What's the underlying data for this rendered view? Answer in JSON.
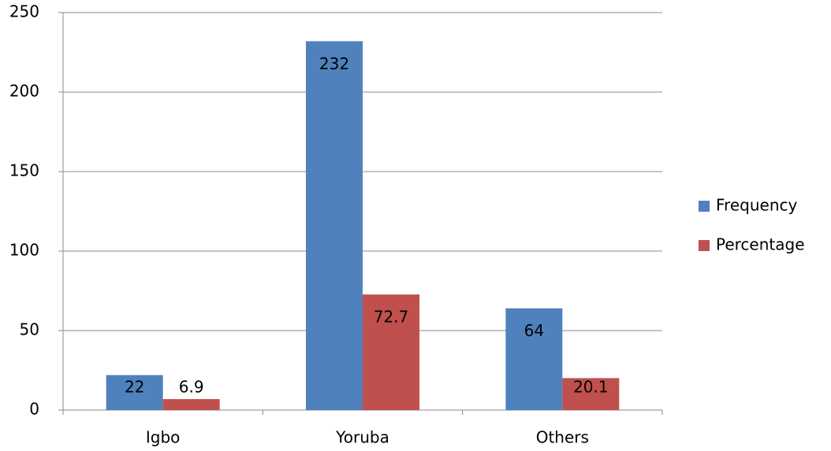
{
  "chart_data": {
    "type": "bar",
    "categories": [
      "Igbo",
      "Yoruba",
      "Others"
    ],
    "series": [
      {
        "name": "Frequency",
        "color": "#4f81bd",
        "values": [
          22,
          232,
          64
        ]
      },
      {
        "name": "Percentage",
        "color": "#c0504d",
        "values": [
          6.9,
          72.7,
          20.1
        ]
      }
    ],
    "ylim": [
      0,
      250
    ],
    "yticks": [
      0,
      50,
      100,
      150,
      200,
      250
    ],
    "grid": true,
    "legend": "right",
    "data_labels": true
  }
}
